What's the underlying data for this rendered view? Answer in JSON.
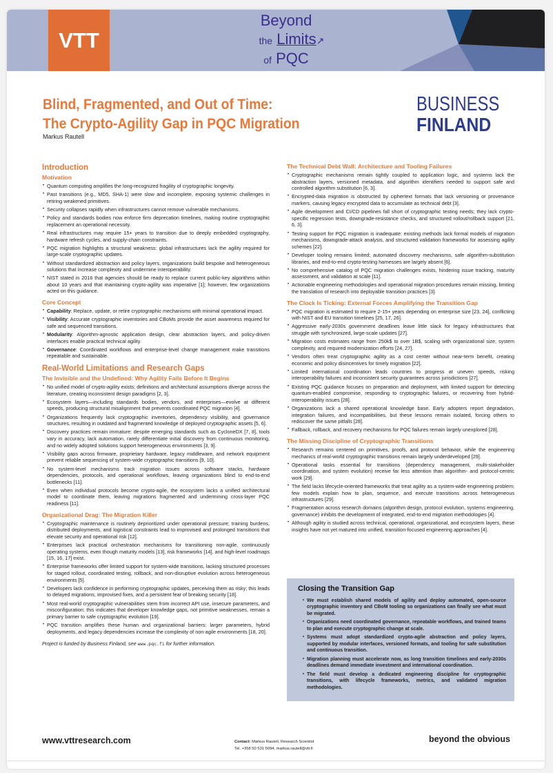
{
  "header": {
    "vtt_logo": "VTT",
    "event_logo": {
      "line1": "Beyond",
      "line2_small": "the",
      "line2": "Limits",
      "line3_small": "of",
      "line3": "PQC"
    },
    "colors": {
      "band": "#aab4d0",
      "vtt_orange": "#e06e35",
      "accent": "#e8793a",
      "navy": "#2e3c8e"
    }
  },
  "title": {
    "line1": "Blind, Fragmented, and Out of Time:",
    "line2": "The Crypto-Agility Gap in PQC Migration"
  },
  "author": "Markus Rautell",
  "sponsor_logo": {
    "line1": "BUSINESS",
    "line2": "FINLAND"
  },
  "left": {
    "intro_title": "Introduction",
    "motivation": {
      "title": "Motivation",
      "items": [
        "Quantum computing amplifies the long-recognized fragility of cryptographic longevity.",
        "Past transitions (e.g., MD5, SHA-1) were slow and incomplete, exposing systemic challenges in retiring weakened primitives.",
        "Security collapses rapidly when infrastructures cannot remove vulnerable mechanisms.",
        "Policy and standards bodies now enforce firm deprecation timelines, making routine cryptographic replacement an operational necessity.",
        "Real infrastructures may require 15+ years to transition due to deeply embedded cryptography, hardware refresh cycles, and supply-chain constraints.",
        "PQC migration highlights a structural weakness: global infrastructures lack the agility required for large-scale cryptographic updates.",
        "Without standardized abstraction and policy layers, organizations build bespoke and heterogeneous solutions that increase complexity and undermine interoperability.",
        "NIST stated in 2016 that agencies should be ready to replace current public-key algorithms within about 10 years and that maintaining crypto-agility was imperative [1]; however, few organizations acted on this guidance."
      ]
    },
    "core_concept": {
      "title": "Core Concept",
      "items": [
        {
          "term": "Capability",
          "text": ": Replace, update, or retire cryptographic mechanisms with minimal operational impact."
        },
        {
          "term": "Visibility",
          "text": ": Accurate cryptographic inventories and CBoMs provide the asset awareness required for safe and sequenced transitions."
        },
        {
          "term": "Modularity",
          "text": ": Algorithm-agnostic application design, clear abstraction layers, and policy-driven interfaces enable practical technical agility."
        },
        {
          "term": "Governance",
          "text": ": Coordinated workflows and enterprise-level change management make transitions repeatable and sustainable."
        }
      ]
    },
    "gaps_title": "Real-World Limitations and Research Gaps",
    "invisible": {
      "title": "The Invisible and the Undefined: Why Agility Fails Before It Begins",
      "items": [
        "No unified model of crypto-agility exists; definitions and architectural assumptions diverge across the literature, creating inconsistent design paradigms [2, 3].",
        "Ecosystem layers—including standards bodies, vendors, and enterprises—evolve at different speeds, producing structural misalignment that prevents coordinated PQC migration [4].",
        "Organizations frequently lack cryptographic inventories, dependency visibility, and governance structures, resulting in outdated and fragmented knowledge of deployed cryptographic assets [5, 6].",
        "Discovery practices remain immature: despite emerging standards such as CycloneDX [7, 8], tools vary in accuracy, lack automation, rarely differentiate initial discovery from continuous monitoring, and no widely adopted solutions support heterogeneous environments [3, 9].",
        "Visibility gaps across firmware, proprietary hardware, legacy middleware, and network equipment prevent reliable sequencing of system-wide cryptographic transitions [9, 10].",
        "No system-level mechanisms track migration issues across software stacks, hardware dependencies, protocols, and operational workflows, leaving organizations blind to end-to-end bottlenecks [11].",
        "Even when individual protocols become crypto-agile, the ecosystem lacks a unified architectural model to coordinate them, leaving migrations fragmented and undermining cross-layer PQC readiness [11]."
      ]
    },
    "drag": {
      "title": "Organizational Drag: The Migration Killer",
      "items": [
        "Cryptographic maintenance is routinely deprioritized under operational pressure; training burdens, distributed deployments, and logistical constraints lead to improvised and prolonged transitions that elevate security and operational risk [12].",
        "Enterprises lack practical orchestration mechanisms for transitioning non-agile, continuously operating systems, even though maturity models [13], risk frameworks [14], and high-level roadmaps [15, 16, 17] exist.",
        "Enterprise frameworks offer limited support for system-wide transitions, lacking structured processes for staged rollout, coordinated testing, rollback, and non-disruptive evolution across heterogeneous environments [5].",
        "Developers lack confidence in performing cryptographic updates, perceiving them as risky; this leads to delayed migrations, improvised fixes, and a persistent fear of breaking security [18].",
        "Most real-world cryptographic vulnerabilities stem from incorrect API use, insecure parameters, and misconfiguration; this indicates that developer knowledge gaps, not primitive weaknesses, remain a primary barrier to safe cryptographic evolution [19].",
        "PQC transition amplifies these human and organizational barriers: larger parameters, hybrid deployments, and legacy dependencies increase the complexity of non-agile environments [18, 20]."
      ]
    },
    "funding": {
      "before": "Project is funded by Business Finland, see ",
      "url": "www.pqc.fi",
      "after": " for further information."
    }
  },
  "right": {
    "debt": {
      "title": "The Technical Debt Wall: Architecture and Tooling Failures",
      "items": [
        "Cryptographic mechanisms remain tightly coupled to application logic, and systems lack the abstraction layers, versioned metadata, and algorithm identifiers needed to support safe and controlled algorithm substitution [6, 3].",
        "Encrypted-data migration is obstructed by ciphertext formats that lack versioning or provenance markers, causing legacy encrypted data to accumulate as technical debt [3].",
        "Agile development and CI/CD pipelines fall short of cryptographic testing needs; they lack crypto-specific regression tests, downgrade-resistance checks, and structured rollout/rollback support [21, 6, 3].",
        "Testing support for PQC migration is inadequate: existing methods lack formal models of migration mechanisms, downgrade-attack analysis, and structured validation frameworks for assessing agility schemes [22].",
        "Developer tooling remains limited; automated discovery mechanisms, safe algorithm-substitution libraries, and end-to-end crypto-testing harnesses are largely absent [6].",
        "No comprehensive catalog of PQC migration challenges exists, hindering issue tracking, maturity assessment, and validation at scale [11].",
        "Actionable engineering methodologies and operational migration procedures remain missing, limiting the translation of research into deployable transition practices [3]."
      ]
    },
    "clock": {
      "title": "The Clock Is Ticking: External Forces Amplifying the Transition Gap",
      "items": [
        "PQC migration is estimated to require 2-15+ years depending on enterprise size [23, 24], conflicting with NIST and EU transition timelines [25, 17, 26].",
        "Aggressive early-2030s government deadlines leave little slack for legacy infrastructures that struggle with synchronized, large-scale updates [27].",
        "Migration costs estimates range from 250k$ to over 1B$, scaling with organizational size, system complexity, and required modernization efforts [24, 27].",
        "Vendors often treat cryptographic agility as a cost center without near-term benefit, creating economic and policy disincentives for timely migration [22].",
        "Limited international coordination leads countries to progress at uneven speeds, risking interoperability failures and inconsistent security guarantees across jurisdictions [27].",
        "Existing PQC guidance focuses on preparation and deployment, with limited support for detecting quantum-enabled compromise, responding to cryptographic failures, or recovering from hybrid-interoperability issues [28].",
        "Organizations lack a shared operational knowledge base. Early adopters report degradation, integration failures, and incompatibilities, but these lessons remain isolated, forcing others to rediscover the same pitfalls [28].",
        "Fallback, rollback, and recovery mechanisms for PQC failures remain largely unexplored [28]."
      ]
    },
    "discipline": {
      "title": "The Missing Discipline of Cryptographic Transitions",
      "items": [
        "Research remains centered on primitives, proofs, and protocol behavior, while the engineering mechanics of real-world cryptographic transitions remain largely underdeveloped [29].",
        "Operational tasks essential for transitions (dependency management, multi-stakeholder coordination, and system evolution) receive far less attention than algorithm- and protocol-centric work [29].",
        "The field lacks lifecycle-oriented frameworks that treat agility as a system-wide engineering problem; few models explain how to plan, sequence, and execute transitions across heterogeneous infrastructures [29].",
        "Fragmentation across research domains (algorithm design, protocol evolution, systems engineering, governance) inhibits the development of integrated, end-to-end migration methodologies [4].",
        "Although agility is studied across technical, operational, organizational, and ecosystem layers, these insights have not yet matured into unified, transition-focused engineering approaches [4]."
      ]
    },
    "closing": {
      "title": "Closing the Transition Gap",
      "items": [
        "We must establish shared models of agility and deploy automated, open-source cryptographic inventory and CBoM tooling so organizations can finally see what must be migrated.",
        "Organizations need coordinated governance, repeatable workflows, and trained teams to plan and execute cryptographic change at scale.",
        "Systems must adopt standardized crypto-agile abstraction and policy layers, supported by modular interfaces, versioned formats, and tooling for safe substitution and continuous transition.",
        "Migration planning must accelerate now, as long transition timelines and early-2030s deadlines demand immediate investment and international coordination.",
        "The field must develop a dedicated engineering discipline for cryptographic transitions, with lifecycle frameworks, metrics, and validated migration methodologies."
      ]
    }
  },
  "footer": {
    "website": "www.vttresearch.com",
    "contact_label": "Contact:",
    "contact": " Markus Rautell, Research Scientist",
    "tel": "Tel. +358 50 531 5094, markus.rautell@vtt.fi",
    "tagline": "beyond the obvious"
  }
}
